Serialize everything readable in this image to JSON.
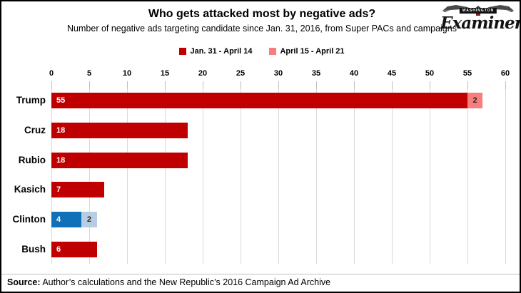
{
  "logo": {
    "top": "WASHINGTON",
    "name": "Examiner"
  },
  "chart_data": {
    "type": "bar",
    "orientation": "horizontal",
    "stacked": true,
    "title": "Who gets attacked most by negative ads?",
    "subtitle": "Number of negative ads targeting candidate since Jan. 31, 2016, from Super PACs and campaigns",
    "x_axis": {
      "min": 0,
      "max": 60,
      "step": 5,
      "position": "top"
    },
    "grid": true,
    "legend_position": "top-center",
    "legend": [
      {
        "label": "Jan. 31 - April 14",
        "color": "#C00000"
      },
      {
        "label": "April 15 - April 21",
        "color": "#F87D7D"
      }
    ],
    "categories": [
      "Trump",
      "Cruz",
      "Rubio",
      "Kasich",
      "Clinton",
      "Bush"
    ],
    "series": [
      {
        "name": "Jan. 31 - April 14",
        "values": [
          55,
          18,
          18,
          7,
          4,
          6
        ]
      },
      {
        "name": "April 15 - April 21",
        "values": [
          2,
          0,
          0,
          0,
          2,
          0
        ]
      }
    ],
    "rows": [
      {
        "category": "Trump",
        "segments": [
          {
            "name": "Jan. 31 - April 14",
            "value": 55,
            "color": "#C00000",
            "label_color": "#FFFFFF",
            "label_align": "left"
          },
          {
            "name": "April 15 - April 21",
            "value": 2,
            "color": "#F87D7D",
            "label_color": "#262626",
            "label_align": "center"
          }
        ]
      },
      {
        "category": "Cruz",
        "segments": [
          {
            "name": "Jan. 31 - April 14",
            "value": 18,
            "color": "#C00000",
            "label_color": "#FFFFFF",
            "label_align": "left"
          }
        ]
      },
      {
        "category": "Rubio",
        "segments": [
          {
            "name": "Jan. 31 - April 14",
            "value": 18,
            "color": "#C00000",
            "label_color": "#FFFFFF",
            "label_align": "left"
          }
        ]
      },
      {
        "category": "Kasich",
        "segments": [
          {
            "name": "Jan. 31 - April 14",
            "value": 7,
            "color": "#C00000",
            "label_color": "#FFFFFF",
            "label_align": "left"
          }
        ]
      },
      {
        "category": "Clinton",
        "segments": [
          {
            "name": "Jan. 31 - April 14",
            "value": 4,
            "color": "#1070B8",
            "label_color": "#FFFFFF",
            "label_align": "left"
          },
          {
            "name": "April 15 - April 21",
            "value": 2,
            "color": "#B8CCE4",
            "label_color": "#262626",
            "label_align": "center"
          }
        ]
      },
      {
        "category": "Bush",
        "segments": [
          {
            "name": "Jan. 31 - April 14",
            "value": 6,
            "color": "#C00000",
            "label_color": "#FFFFFF",
            "label_align": "left"
          }
        ]
      }
    ]
  },
  "source": {
    "label": "Source:",
    "text": " Author’s calculations and the New Republic’s 2016 Campaign Ad Archive"
  }
}
